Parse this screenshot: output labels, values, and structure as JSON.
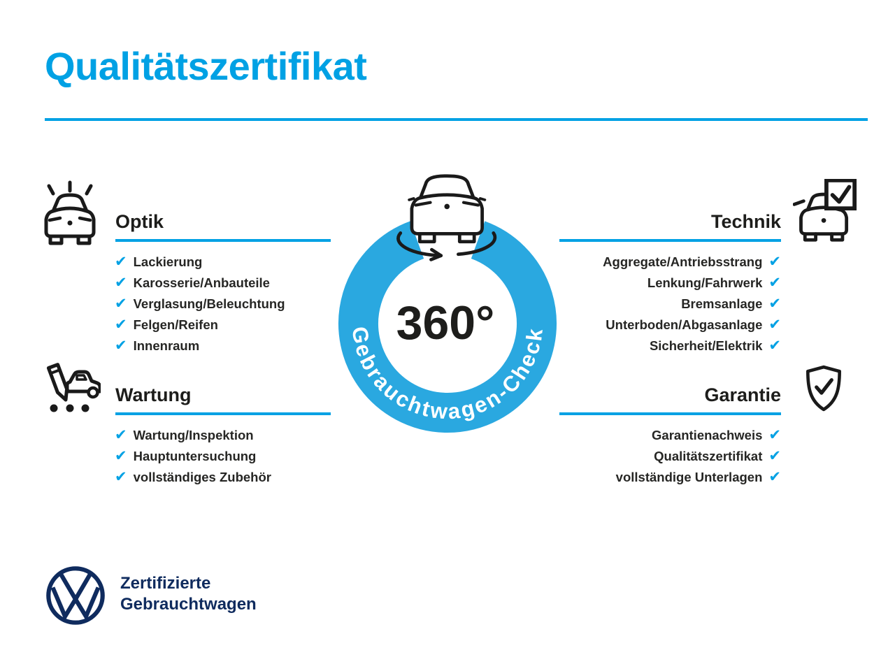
{
  "title": "Qualitätszertifikat",
  "check_glyph": "✔",
  "colors": {
    "accent": "#00a1e4",
    "ring": "#2aa8e0",
    "text_dark": "#1d1d1b",
    "navy": "#0f2b5e"
  },
  "center": {
    "degree_label": "360°",
    "ring_label": "Gebrauchtwagen-Check"
  },
  "sections": [
    {
      "id": "optik",
      "heading": "Optik",
      "align": "left",
      "icon": "car-shine-icon",
      "items": [
        "Lackierung",
        "Karosserie/Anbauteile",
        "Verglasung/Beleuchtung",
        "Felgen/Reifen",
        "Innenraum"
      ]
    },
    {
      "id": "wartung",
      "heading": "Wartung",
      "align": "left",
      "icon": "service-checklist-icon",
      "items": [
        "Wartung/Inspektion",
        "Hauptuntersuchung",
        "vollständiges Zubehör"
      ]
    },
    {
      "id": "technik",
      "heading": "Technik",
      "align": "right",
      "icon": "car-checkbox-icon",
      "items": [
        "Aggregate/Antriebsstrang",
        "Lenkung/Fahrwerk",
        "Bremsanlage",
        "Unterboden/Abgasanlage",
        "Sicherheit/Elektrik"
      ]
    },
    {
      "id": "garantie",
      "heading": "Garantie",
      "align": "right",
      "icon": "shield-check-icon",
      "items": [
        "Garantienachweis",
        "Qualitätszertifikat",
        "vollständige Unterlagen"
      ]
    }
  ],
  "footer": {
    "brand_line1": "Zertifizierte",
    "brand_line2": "Gebrauchtwagen"
  }
}
